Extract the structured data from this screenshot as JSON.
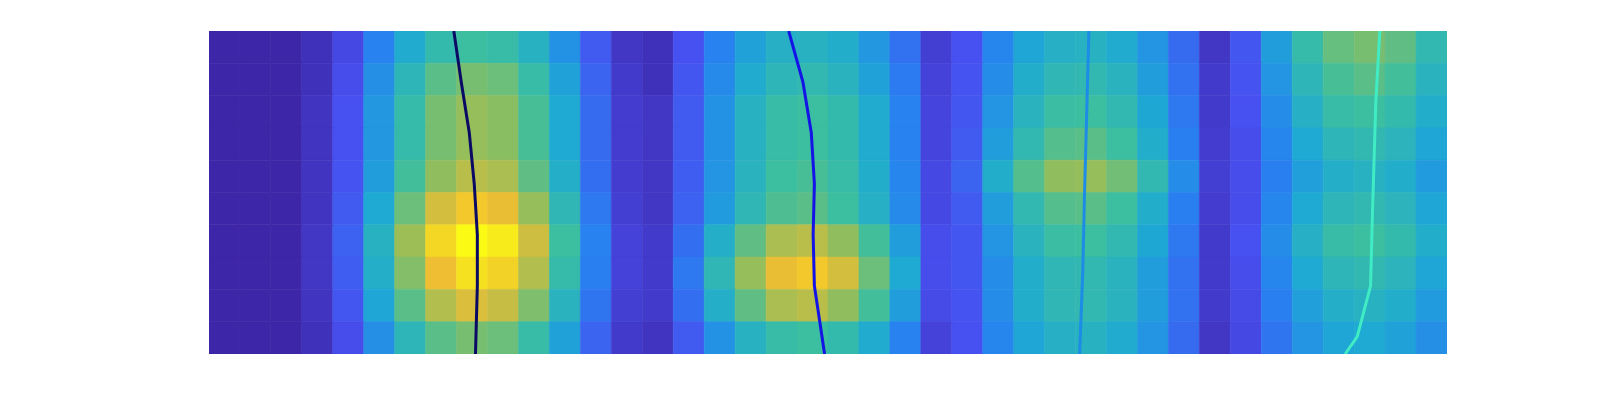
{
  "chart_data": {
    "type": "heatmap",
    "tick_labels": false,
    "xlim": [
      0,
      4
    ],
    "ylim": [
      0,
      1
    ],
    "zlim": [
      0,
      1
    ],
    "x": [
      0.05,
      0.15,
      0.25,
      0.35,
      0.45,
      0.55,
      0.65,
      0.75,
      0.85,
      0.95,
      1.05,
      1.15,
      1.25,
      1.35,
      1.45,
      1.55,
      1.65,
      1.75,
      1.85,
      1.95,
      2.05,
      2.15,
      2.25,
      2.35,
      2.45,
      2.55,
      2.65,
      2.75,
      2.85,
      2.95,
      3.05,
      3.15,
      3.25,
      3.35,
      3.45,
      3.55,
      3.65,
      3.75,
      3.85,
      3.95
    ],
    "y": [
      0.95,
      0.85,
      0.75,
      0.65,
      0.55,
      0.45,
      0.35,
      0.25,
      0.15,
      0.05
    ],
    "z": [
      [
        0,
        0,
        0,
        0.04,
        0.12,
        0.3,
        0.46,
        0.56,
        0.6,
        0.58,
        0.5,
        0.36,
        0.18,
        0.06,
        0.04,
        0.15,
        0.3,
        0.42,
        0.49,
        0.5,
        0.47,
        0.38,
        0.25,
        0.09,
        0.15,
        0.31,
        0.43,
        0.49,
        0.5,
        0.46,
        0.37,
        0.23,
        0.06,
        0.17,
        0.4,
        0.57,
        0.67,
        0.7,
        0.66,
        0.55
      ],
      [
        0,
        0,
        0,
        0.04,
        0.14,
        0.35,
        0.53,
        0.65,
        0.7,
        0.68,
        0.58,
        0.42,
        0.21,
        0.07,
        0.04,
        0.17,
        0.33,
        0.46,
        0.53,
        0.55,
        0.51,
        0.42,
        0.28,
        0.1,
        0.16,
        0.34,
        0.47,
        0.54,
        0.55,
        0.51,
        0.4,
        0.25,
        0.07,
        0.16,
        0.37,
        0.53,
        0.62,
        0.65,
        0.61,
        0.51
      ],
      [
        0,
        0,
        0,
        0.05,
        0.15,
        0.38,
        0.57,
        0.7,
        0.75,
        0.73,
        0.62,
        0.45,
        0.23,
        0.08,
        0.06,
        0.18,
        0.36,
        0.5,
        0.58,
        0.6,
        0.56,
        0.46,
        0.3,
        0.11,
        0.17,
        0.37,
        0.51,
        0.59,
        0.6,
        0.55,
        0.44,
        0.27,
        0.07,
        0.15,
        0.34,
        0.49,
        0.58,
        0.6,
        0.56,
        0.47
      ],
      [
        0,
        0,
        0,
        0.05,
        0.15,
        0.38,
        0.57,
        0.7,
        0.75,
        0.73,
        0.62,
        0.45,
        0.23,
        0.08,
        0.06,
        0.18,
        0.36,
        0.5,
        0.58,
        0.6,
        0.56,
        0.46,
        0.3,
        0.11,
        0.18,
        0.4,
        0.55,
        0.64,
        0.65,
        0.6,
        0.47,
        0.29,
        0.08,
        0.14,
        0.31,
        0.45,
        0.53,
        0.55,
        0.52,
        0.43
      ],
      [
        0,
        0,
        0,
        0.05,
        0.16,
        0.4,
        0.61,
        0.74,
        0.8,
        0.78,
        0.66,
        0.48,
        0.24,
        0.08,
        0.06,
        0.19,
        0.37,
        0.51,
        0.6,
        0.62,
        0.58,
        0.47,
        0.31,
        0.12,
        0.21,
        0.47,
        0.64,
        0.74,
        0.75,
        0.69,
        0.55,
        0.34,
        0.09,
        0.14,
        0.29,
        0.41,
        0.48,
        0.5,
        0.47,
        0.39
      ],
      [
        0,
        0,
        0,
        0.05,
        0.18,
        0.45,
        0.68,
        0.84,
        0.9,
        0.87,
        0.75,
        0.54,
        0.27,
        0.09,
        0.06,
        0.2,
        0.39,
        0.54,
        0.63,
        0.65,
        0.6,
        0.49,
        0.33,
        0.12,
        0.18,
        0.4,
        0.55,
        0.64,
        0.65,
        0.6,
        0.47,
        0.29,
        0.08,
        0.14,
        0.31,
        0.45,
        0.53,
        0.55,
        0.52,
        0.43
      ],
      [
        0,
        0,
        0,
        0.06,
        0.2,
        0.5,
        0.76,
        0.93,
        1,
        0.97,
        0.83,
        0.6,
        0.3,
        0.1,
        0.07,
        0.24,
        0.48,
        0.66,
        0.78,
        0.8,
        0.74,
        0.61,
        0.4,
        0.14,
        0.17,
        0.37,
        0.51,
        0.59,
        0.6,
        0.55,
        0.44,
        0.27,
        0.07,
        0.15,
        0.34,
        0.49,
        0.58,
        0.6,
        0.56,
        0.47
      ],
      [
        0,
        0,
        0,
        0.06,
        0.19,
        0.48,
        0.72,
        0.88,
        0.95,
        0.92,
        0.79,
        0.57,
        0.29,
        0.1,
        0.07,
        0.27,
        0.54,
        0.75,
        0.87,
        0.9,
        0.84,
        0.68,
        0.45,
        0.14,
        0.17,
        0.34,
        0.47,
        0.54,
        0.55,
        0.51,
        0.4,
        0.25,
        0.07,
        0.14,
        0.31,
        0.45,
        0.53,
        0.55,
        0.52,
        0.43
      ],
      [
        0,
        0,
        0,
        0.05,
        0.17,
        0.43,
        0.65,
        0.79,
        0.85,
        0.82,
        0.71,
        0.51,
        0.26,
        0.09,
        0.07,
        0.24,
        0.48,
        0.66,
        0.78,
        0.8,
        0.74,
        0.61,
        0.4,
        0.13,
        0.16,
        0.34,
        0.47,
        0.54,
        0.55,
        0.51,
        0.4,
        0.25,
        0.07,
        0.13,
        0.29,
        0.41,
        0.48,
        0.5,
        0.47,
        0.39
      ],
      [
        0,
        0,
        0,
        0.04,
        0.14,
        0.35,
        0.53,
        0.65,
        0.7,
        0.68,
        0.58,
        0.42,
        0.21,
        0.07,
        0.05,
        0.18,
        0.36,
        0.5,
        0.58,
        0.6,
        0.56,
        0.46,
        0.3,
        0.1,
        0.15,
        0.31,
        0.43,
        0.49,
        0.5,
        0.46,
        0.37,
        0.23,
        0.06,
        0.12,
        0.26,
        0.37,
        0.43,
        0.45,
        0.42,
        0.35
      ]
    ],
    "series": [
      {
        "type": "line",
        "color": "#0a0a64",
        "x": [
          0.791,
          0.815,
          0.841,
          0.857,
          0.867,
          0.867,
          0.861
        ],
        "y": [
          1,
          0.842,
          0.685,
          0.527,
          0.369,
          0.211,
          0
        ]
      },
      {
        "type": "line",
        "color": "#1414e6",
        "x": [
          1.873,
          1.919,
          1.946,
          1.956,
          1.952,
          1.956,
          1.989
        ],
        "y": [
          1,
          0.842,
          0.685,
          0.527,
          0.369,
          0.211,
          0
        ]
      },
      {
        "type": "line",
        "color": "#1c8ce6",
        "x": [
          2.843,
          2.836,
          2.829,
          2.823,
          2.813
        ],
        "y": [
          1,
          0.75,
          0.5,
          0.25,
          0
        ]
      },
      {
        "type": "line",
        "color": "#40ecc4",
        "x": [
          3.783,
          3.77,
          3.76,
          3.753,
          3.71,
          3.671
        ],
        "y": [
          1,
          0.779,
          0.464,
          0.211,
          0.054,
          0
        ]
      }
    ]
  }
}
